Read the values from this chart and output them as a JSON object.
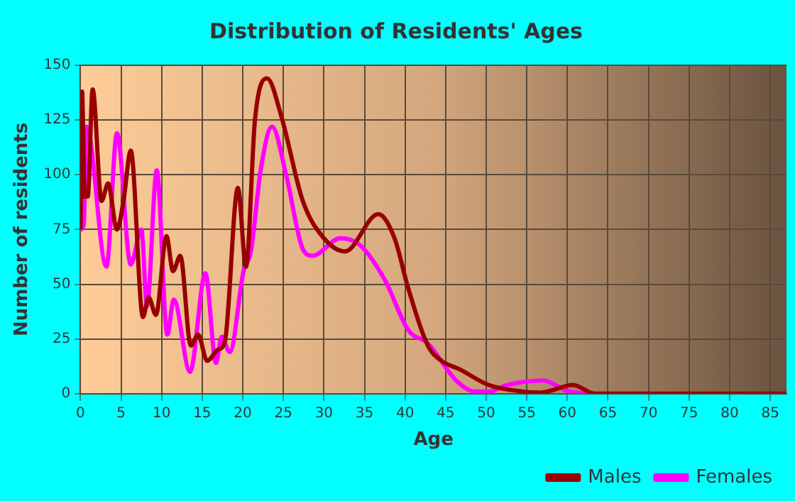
{
  "chart_data": {
    "type": "line",
    "title": "Distribution of Residents' Ages",
    "xlabel": "Age",
    "ylabel": "Number of residents",
    "xlim": [
      0,
      87
    ],
    "xticks": [
      0,
      5,
      10,
      15,
      20,
      25,
      30,
      35,
      40,
      45,
      50,
      55,
      60,
      65,
      70,
      75,
      80,
      85
    ],
    "ylim": [
      0,
      150
    ],
    "yticks": [
      0,
      25,
      50,
      75,
      100,
      125,
      150
    ],
    "grid": true,
    "legend": "bottom right",
    "marker": "none",
    "line_style": "solid",
    "series": [
      {
        "name": "Males",
        "color": "#990000",
        "x": [
          0,
          0.2,
          0.5,
          0.9,
          1.5,
          2.6,
          3.4,
          4.5,
          5.3,
          6.2,
          7.7,
          8.4,
          9.3,
          10.6,
          11.4,
          12.3,
          13.6,
          14.5,
          15.6,
          16.9,
          17.8,
          19.4,
          20.4,
          21.5,
          23,
          24.8,
          27.4,
          30,
          32.6,
          36.7,
          38.7,
          40.4,
          42.8,
          44.5,
          46.8,
          50.3,
          54.4,
          56.7,
          60.7,
          63.4,
          70,
          80,
          87
        ],
        "values": [
          75,
          138,
          90,
          90,
          139,
          88,
          96,
          75,
          88,
          111,
          35,
          44,
          36,
          72,
          56,
          63,
          22,
          27,
          15,
          20,
          24,
          94,
          58,
          125,
          144,
          126,
          88,
          71,
          65,
          82,
          71,
          48,
          22,
          15,
          11,
          4,
          1,
          0.5,
          4,
          0,
          0,
          0,
          0
        ]
      },
      {
        "name": "Females",
        "color": "#ff00ff",
        "x": [
          0,
          0.4,
          0.75,
          3.2,
          4.5,
          6.2,
          7.5,
          8.2,
          9.4,
          10.7,
          11.5,
          13.5,
          15.4,
          16.7,
          17.4,
          18.4,
          20.1,
          21,
          22.2,
          23.6,
          25.4,
          27.4,
          28.6,
          32,
          34.4,
          37.5,
          40.4,
          42.8,
          46.3,
          48.6,
          50.3,
          52.6,
          57,
          60.2,
          63.4,
          70
        ],
        "values": [
          75,
          77,
          122,
          58,
          119,
          59,
          75,
          40,
          102,
          27,
          43,
          10,
          55,
          14,
          26,
          19,
          56,
          65,
          102,
          122,
          99,
          66,
          63,
          71,
          68,
          52,
          29,
          23,
          6,
          1,
          1,
          4,
          6,
          1,
          0,
          0
        ]
      }
    ]
  }
}
